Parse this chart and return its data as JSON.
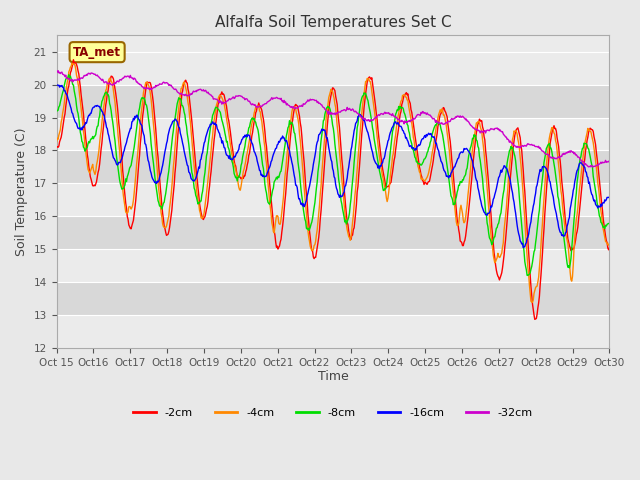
{
  "title": "Alfalfa Soil Temperatures Set C",
  "xlabel": "Time",
  "ylabel": "Soil Temperature (C)",
  "ylim": [
    12.0,
    21.5
  ],
  "yticks": [
    12.0,
    13.0,
    14.0,
    15.0,
    16.0,
    17.0,
    18.0,
    19.0,
    20.0,
    21.0
  ],
  "fig_bg": "#e8e8e8",
  "plot_bg_light": "#ebebeb",
  "plot_bg_dark": "#d8d8d8",
  "annotation_text": "TA_met",
  "annotation_box_color": "#ffff99",
  "annotation_border_color": "#996600",
  "colors": {
    "-2cm": "#ff0000",
    "-4cm": "#ff8800",
    "-8cm": "#00dd00",
    "-16cm": "#0000ff",
    "-32cm": "#cc00cc"
  },
  "x_tick_labels": [
    "Oct 15",
    "Oct 16",
    "Oct 17",
    "Oct 18",
    "Oct 19",
    "Oct 20",
    "Oct 21",
    "Oct 22",
    "Oct 23",
    "Oct 24",
    "Oct 25",
    "Oct 26",
    "Oct 27",
    "Oct 28",
    "Oct 29",
    "Oct 30"
  ],
  "n_points": 720
}
